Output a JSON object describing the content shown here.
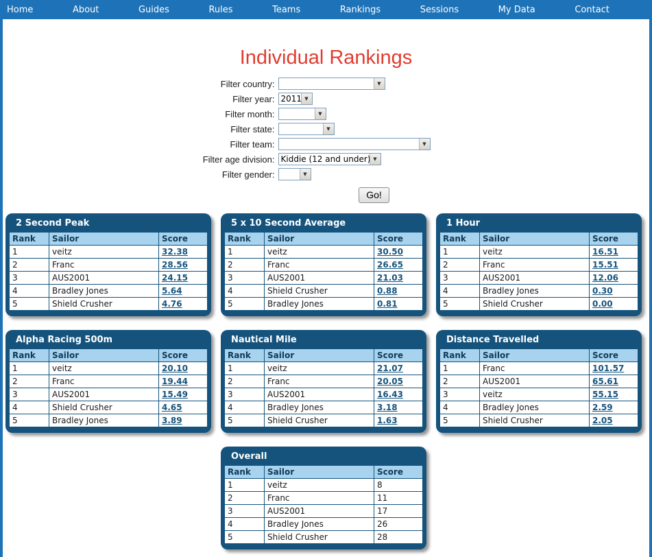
{
  "colors": {
    "nav_background": "#1e73b8",
    "panel_background": "#15537d",
    "table_header_background": "#a8d3ee",
    "title_red": "#e23b2e",
    "score_link": "#15537d"
  },
  "nav": {
    "items": [
      "Home",
      "About",
      "Guides",
      "Rules",
      "Teams",
      "Rankings",
      "Sessions",
      "My Data",
      "Contact"
    ]
  },
  "page": {
    "title": "Individual Rankings"
  },
  "filters": {
    "go_label": "Go!",
    "fields": [
      {
        "key": "country",
        "label": "Filter country:",
        "value": ""
      },
      {
        "key": "year",
        "label": "Filter year:",
        "value": "2011"
      },
      {
        "key": "month",
        "label": "Filter month:",
        "value": ""
      },
      {
        "key": "state",
        "label": "Filter state:",
        "value": ""
      },
      {
        "key": "team",
        "label": "Filter team:",
        "value": ""
      },
      {
        "key": "age",
        "label": "Filter age division:",
        "value": "Kiddie (12 and under)"
      },
      {
        "key": "gender",
        "label": "Filter gender:",
        "value": ""
      }
    ]
  },
  "tables": [
    {
      "title": "2 Second Peak",
      "headers": [
        "Rank",
        "Sailor",
        "Score"
      ],
      "scores_linked": true,
      "rows": [
        [
          "1",
          "veitz",
          "32.38"
        ],
        [
          "2",
          "Franc",
          "28.56"
        ],
        [
          "3",
          "AUS2001",
          "24.15"
        ],
        [
          "4",
          "Bradley Jones",
          "5.64"
        ],
        [
          "5",
          "Shield Crusher",
          "4.76"
        ]
      ]
    },
    {
      "title": "5 x 10 Second Average",
      "headers": [
        "Rank",
        "Sailor",
        "Score"
      ],
      "scores_linked": true,
      "rows": [
        [
          "1",
          "veitz",
          "30.50"
        ],
        [
          "2",
          "Franc",
          "26.65"
        ],
        [
          "3",
          "AUS2001",
          "21.03"
        ],
        [
          "4",
          "Shield Crusher",
          "0.88"
        ],
        [
          "5",
          "Bradley Jones",
          "0.81"
        ]
      ]
    },
    {
      "title": "1 Hour",
      "headers": [
        "Rank",
        "Sailor",
        "Score"
      ],
      "scores_linked": true,
      "rows": [
        [
          "1",
          "veitz",
          "16.51"
        ],
        [
          "2",
          "Franc",
          "15.51"
        ],
        [
          "3",
          "AUS2001",
          "12.06"
        ],
        [
          "4",
          "Bradley Jones",
          "0.30"
        ],
        [
          "5",
          "Shield Crusher",
          "0.00"
        ]
      ]
    },
    {
      "title": "Alpha Racing 500m",
      "headers": [
        "Rank",
        "Sailor",
        "Score"
      ],
      "scores_linked": true,
      "rows": [
        [
          "1",
          "veitz",
          "20.10"
        ],
        [
          "2",
          "Franc",
          "19.44"
        ],
        [
          "3",
          "AUS2001",
          "15.49"
        ],
        [
          "4",
          "Shield Crusher",
          "4.65"
        ],
        [
          "5",
          "Bradley Jones",
          "3.89"
        ]
      ]
    },
    {
      "title": "Nautical Mile",
      "headers": [
        "Rank",
        "Sailor",
        "Score"
      ],
      "scores_linked": true,
      "rows": [
        [
          "1",
          "veitz",
          "21.07"
        ],
        [
          "2",
          "Franc",
          "20.05"
        ],
        [
          "3",
          "AUS2001",
          "16.43"
        ],
        [
          "4",
          "Bradley Jones",
          "3.18"
        ],
        [
          "5",
          "Shield Crusher",
          "1.63"
        ]
      ]
    },
    {
      "title": "Distance Travelled",
      "headers": [
        "Rank",
        "Sailor",
        "Score"
      ],
      "scores_linked": true,
      "rows": [
        [
          "1",
          "Franc",
          "101.57"
        ],
        [
          "2",
          "AUS2001",
          "65.61"
        ],
        [
          "3",
          "veitz",
          "55.15"
        ],
        [
          "4",
          "Bradley Jones",
          "2.59"
        ],
        [
          "5",
          "Shield Crusher",
          "2.05"
        ]
      ]
    },
    {
      "title": "Overall",
      "headers": [
        "Rank",
        "Sailor",
        "Score"
      ],
      "scores_linked": false,
      "rows": [
        [
          "1",
          "veitz",
          "8"
        ],
        [
          "2",
          "Franc",
          "11"
        ],
        [
          "3",
          "AUS2001",
          "17"
        ],
        [
          "4",
          "Bradley Jones",
          "26"
        ],
        [
          "5",
          "Shield Crusher",
          "28"
        ]
      ]
    }
  ]
}
